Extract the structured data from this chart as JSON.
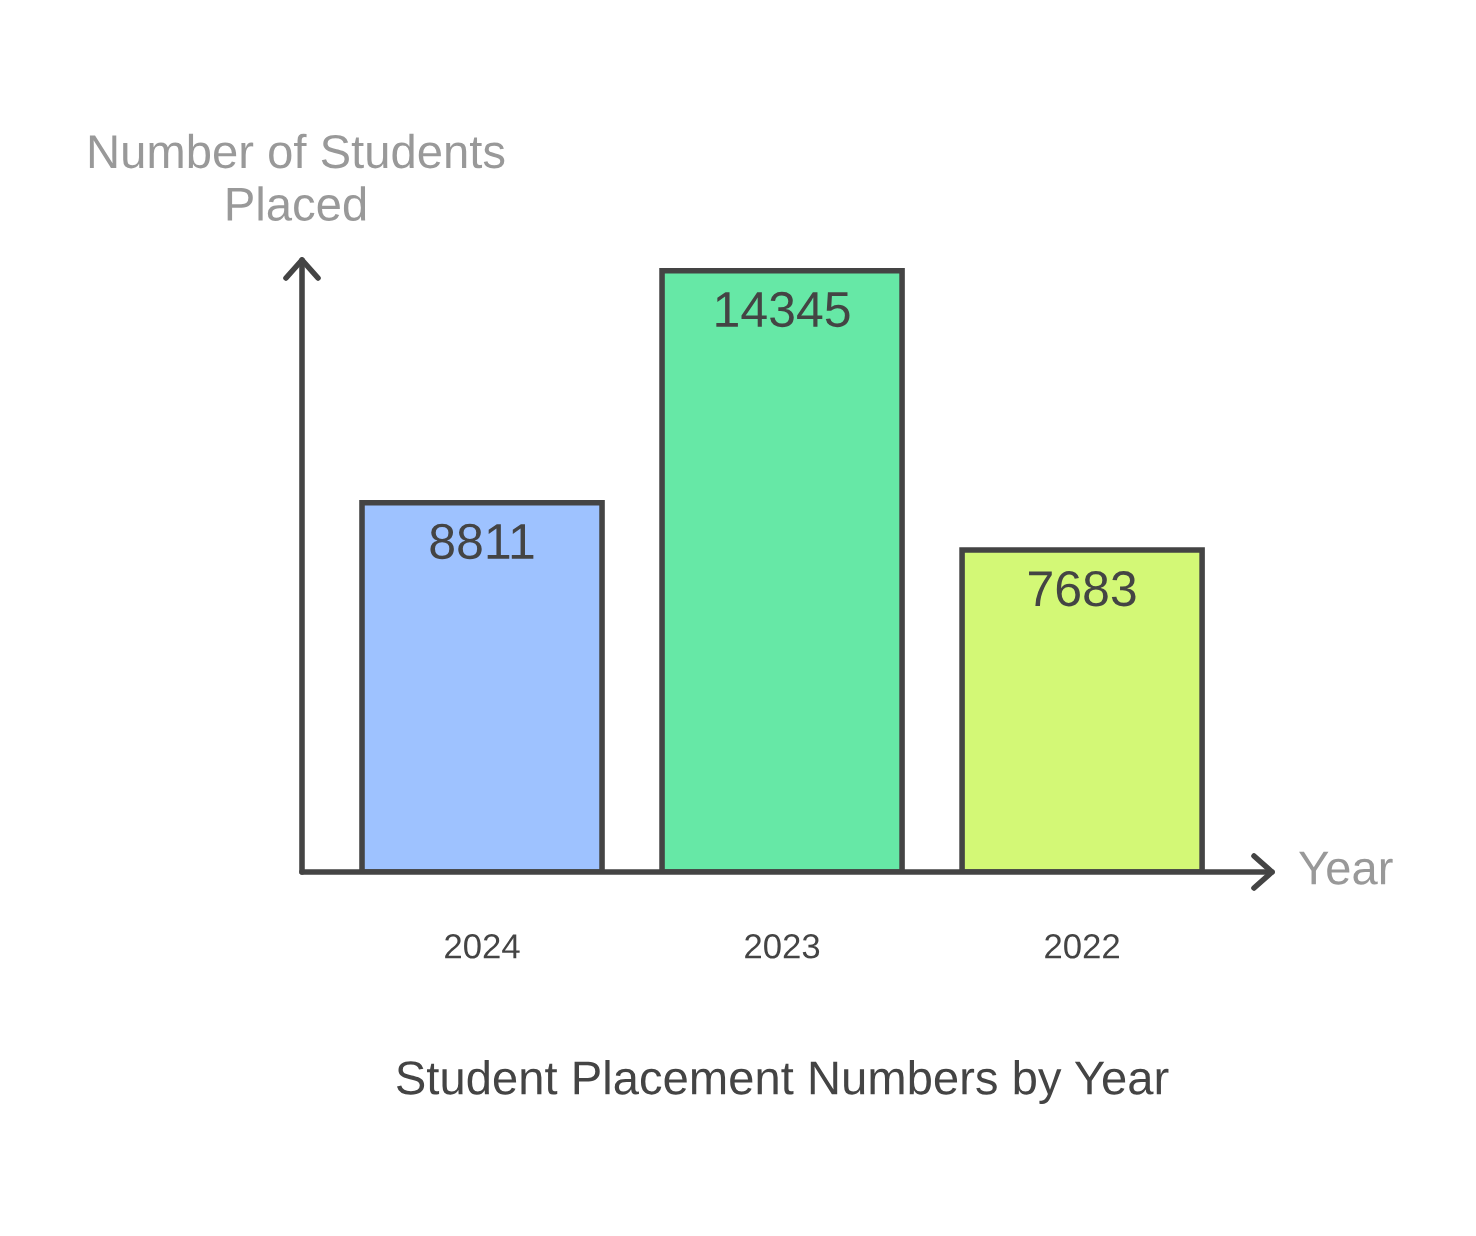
{
  "chart_data": {
    "type": "bar",
    "title": "Student Placement Numbers by Year",
    "xlabel": "Year",
    "ylabel": "Number of Students\nPlaced",
    "categories": [
      "2024",
      "2023",
      "2022"
    ],
    "values": [
      8811,
      14345,
      7683
    ],
    "colors": [
      "#9ec2ff",
      "#66e8a6",
      "#d3f876"
    ],
    "ylim": [
      0,
      14600
    ],
    "tick_labels": "x",
    "data_labels": true
  }
}
